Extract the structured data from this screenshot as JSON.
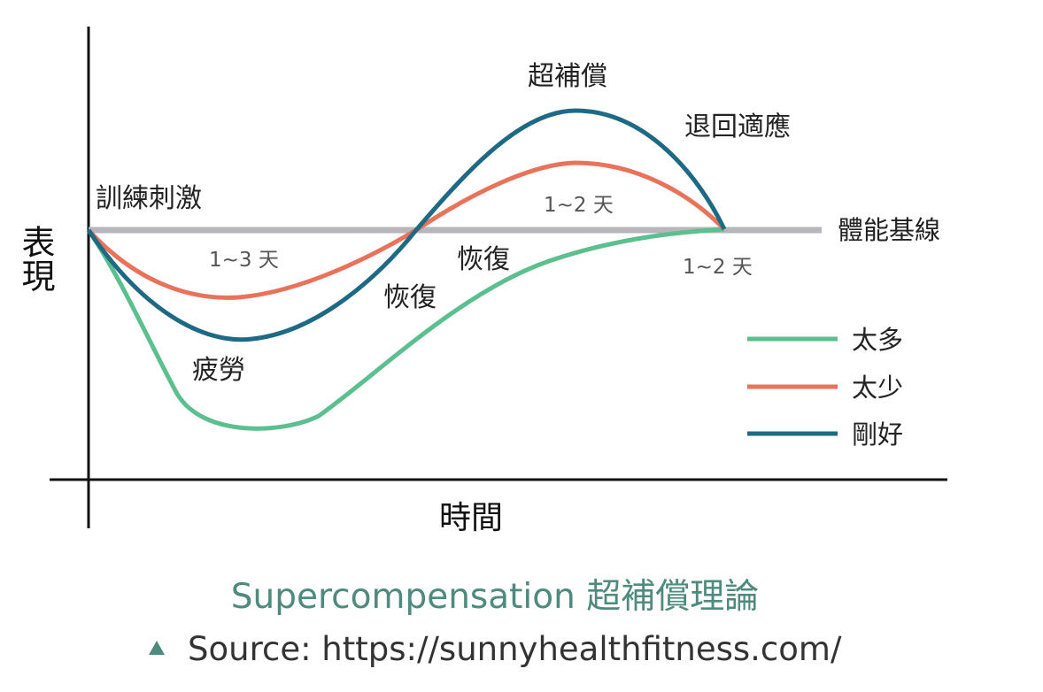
{
  "diagram": {
    "y_axis_label": "表現",
    "x_axis_label": "時間",
    "baseline_label": "體能基線",
    "annotations": {
      "stimulus": "訓練刺激",
      "fatigue": "疲勞",
      "recovery_1": "恢復",
      "recovery_2": "恢復",
      "supercompensation": "超補償",
      "regression": "退回適應",
      "days_1": "1~3 天",
      "days_2": "1~2 天",
      "days_3": "1~2 天"
    },
    "legend": [
      {
        "label": "太多",
        "color": "#5bbf8f"
      },
      {
        "label": "太少",
        "color": "#e8735a"
      },
      {
        "label": "剛好",
        "color": "#1e6a84"
      }
    ],
    "colors": {
      "baseline": "#b6b6bb",
      "axis": "#111111"
    }
  },
  "caption": "Supercompensation 超補償理論",
  "source": "Source: https://sunnyhealthfitness.com/"
}
